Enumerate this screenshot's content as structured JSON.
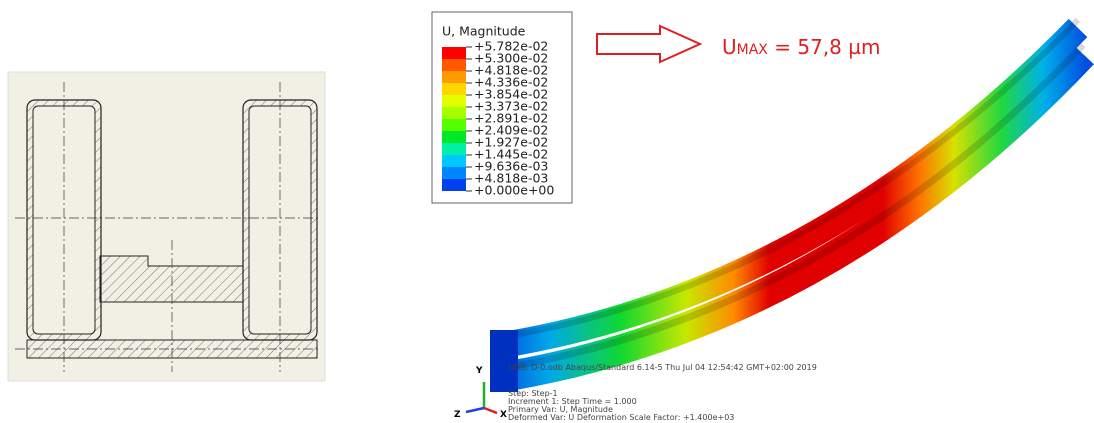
{
  "drawing": {
    "label": null
  },
  "legend": {
    "title": "U, Magnitude",
    "labels": [
      "+5.782e-02",
      "+5.300e-02",
      "+4.818e-02",
      "+4.336e-02",
      "+3.854e-02",
      "+3.373e-02",
      "+2.891e-02",
      "+2.409e-02",
      "+1.927e-02",
      "+1.445e-02",
      "+9.636e-03",
      "+4.818e-03",
      "+0.000e+00"
    ],
    "colors": [
      "#ff0000",
      "#ff5a00",
      "#ff9b00",
      "#ffd500",
      "#e3ff00",
      "#a6ff00",
      "#55ff00",
      "#00e828",
      "#00f0a8",
      "#00c8ff",
      "#0086ff",
      "#0040f0"
    ]
  },
  "annotation": {
    "symbol": "U",
    "subscript": "MAX",
    "text": " = 57,8 µm"
  },
  "footer": {
    "line1": "ODB: D-0.odb    Abaqus/Standard 6.14-5    Thu Jul 04 12:54:42 GMT+02:00 2019",
    "line2": "Step: Step-1",
    "line3": "Increment    1: Step Time =    1.000",
    "line4": "Primary Var: U, Magnitude",
    "line5": "Deformed Var: U   Deformation Scale Factor: +1.400e+03"
  },
  "triad": {
    "y": "Y",
    "z": "Z",
    "x": "X"
  }
}
